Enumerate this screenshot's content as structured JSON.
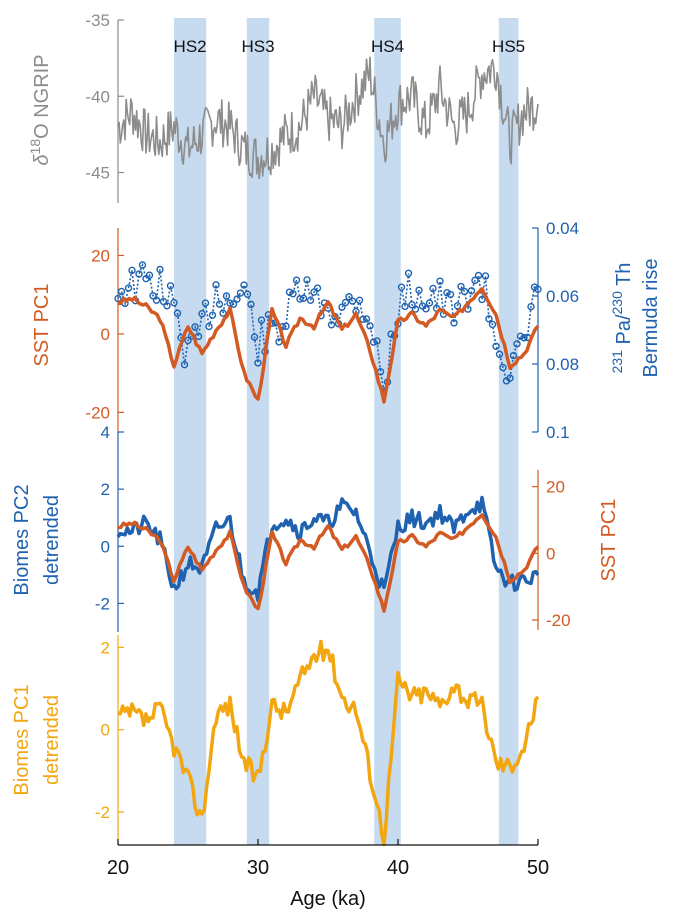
{
  "chart_data": {
    "type": "line",
    "xlabel": "Age (ka)",
    "xlim": [
      20,
      50
    ],
    "xticks": [
      "20",
      "30",
      "40",
      "50"
    ],
    "events": [
      {
        "label": "HS2",
        "start": 24.0,
        "end": 26.3
      },
      {
        "label": "HS3",
        "start": 29.2,
        "end": 30.8
      },
      {
        "label": "HS4",
        "start": 38.3,
        "end": 40.2
      },
      {
        "label": "HS5",
        "start": 47.2,
        "end": 48.6
      }
    ],
    "colors": {
      "ngrip": "#8c8c8c",
      "sst": "#d35a22",
      "pa": "#1f62b0",
      "pc2": "#1f62b0",
      "pc1": "#f2a60f",
      "band": "#c6dbf0"
    },
    "panels": [
      {
        "id": "ngrip",
        "ylabel": "δ18O NGRIP",
        "ylim": [
          -46,
          -35
        ],
        "yticks": [
          "-35",
          "-40",
          "-45"
        ],
        "series": [
          {
            "x": [
              20,
              21,
              22,
              23,
              24,
              25,
              26,
              27,
              28,
              29,
              30,
              31,
              32,
              33,
              34,
              35,
              36,
              37,
              38,
              39,
              40,
              41,
              42,
              43,
              44,
              45,
              46,
              47,
              48,
              49,
              50
            ],
            "y": [
              -42,
              -41,
              -42.5,
              -43,
              -42,
              -43.5,
              -42.5,
              -41.5,
              -42,
              -43.5,
              -44,
              -43.5,
              -42.5,
              -42,
              -40,
              -41.5,
              -42,
              -40,
              -38.5,
              -43,
              -40.5,
              -40,
              -42,
              -39.5,
              -42,
              -41,
              -38.5,
              -38,
              -43,
              -41,
              -40.5
            ]
          }
        ]
      },
      {
        "id": "sst-pa",
        "ylabel": "SST PC1",
        "ylim": [
          -22,
          22
        ],
        "yticks": [
          "20",
          "0",
          "-20"
        ],
        "ylabel_right": "231 Pa/230 Th Bermuda rise",
        "ylim_right": [
          0.04,
          0.1
        ],
        "yticks_right": [
          "0.04",
          "0.06",
          "0.08",
          "0.1"
        ],
        "series": [
          {
            "x": [
              20,
              21,
              22,
              23,
              24,
              25,
              26,
              27,
              28,
              29,
              30,
              31,
              32,
              33,
              34,
              35,
              36,
              37,
              38,
              39,
              40,
              41,
              42,
              43,
              44,
              45,
              46,
              47,
              48,
              49,
              50
            ],
            "y": [
              8,
              9,
              7,
              4,
              -8,
              2,
              -5,
              1,
              6,
              -10,
              -17,
              6,
              -3,
              4,
              2,
              8,
              1,
              5,
              -4,
              -17,
              3,
              5,
              2,
              6,
              4,
              8,
              12,
              5,
              -8,
              -5,
              2
            ]
          },
          {
            "x": [
              20,
              21,
              22,
              23,
              24,
              25,
              26,
              27,
              28,
              29,
              30,
              31,
              32,
              33,
              34,
              35,
              36,
              37,
              38,
              39,
              40,
              41,
              42,
              43,
              44,
              45,
              46,
              47,
              48,
              49,
              50
            ],
            "y": [
              0.058,
              0.057,
              0.056,
              0.057,
              0.064,
              0.078,
              0.07,
              0.058,
              0.062,
              0.058,
              0.074,
              0.07,
              0.067,
              0.058,
              0.062,
              0.063,
              0.065,
              0.06,
              0.066,
              0.088,
              0.063,
              0.058,
              0.06,
              0.061,
              0.066,
              0.058,
              0.056,
              0.072,
              0.082,
              0.076,
              0.058
            ]
          }
        ]
      },
      {
        "id": "pc2-sst",
        "ylabel": "Biomes PC2 detrended",
        "ylim": [
          -3,
          4
        ],
        "yticks": [
          "4",
          "2",
          "0",
          "-2"
        ],
        "ylabel_right": "SST PC1",
        "ylim_right": [
          -22,
          28
        ],
        "yticks_right": [
          "20",
          "0",
          "-20"
        ],
        "series": [
          {
            "x": [
              20,
              21,
              22,
              23,
              24,
              25,
              26,
              27,
              28,
              29,
              30,
              31,
              32,
              33,
              34,
              35,
              36,
              37,
              38,
              39,
              40,
              41,
              42,
              43,
              44,
              45,
              46,
              47,
              48,
              49,
              50
            ],
            "y": [
              0.6,
              0.5,
              0.8,
              0.2,
              -1.5,
              -0.6,
              -0.8,
              0.6,
              0.9,
              -1.2,
              -1.6,
              0.8,
              1.0,
              0.5,
              1.0,
              0.8,
              1.4,
              1.2,
              -0.2,
              -1.6,
              0.7,
              1.0,
              0.8,
              1.2,
              0.6,
              1.3,
              1.5,
              -0.8,
              -1.3,
              -1.2,
              -1.0
            ]
          },
          {
            "x": [
              20,
              21,
              22,
              23,
              24,
              25,
              26,
              27,
              28,
              29,
              30,
              31,
              32,
              33,
              34,
              35,
              36,
              37,
              38,
              39,
              40,
              41,
              42,
              43,
              44,
              45,
              46,
              47,
              48,
              49,
              50
            ],
            "y": [
              8,
              9,
              7,
              4,
              -8,
              2,
              -5,
              1,
              6,
              -10,
              -17,
              6,
              -3,
              4,
              2,
              8,
              1,
              5,
              -4,
              -17,
              3,
              5,
              2,
              6,
              4,
              8,
              12,
              5,
              -8,
              -5,
              2
            ]
          }
        ]
      },
      {
        "id": "pc1",
        "ylabel": "Biomes PC1 detrended",
        "ylim": [
          -2.8,
          2.3
        ],
        "yticks": [
          "2",
          "0",
          "-2"
        ],
        "series": [
          {
            "x": [
              20,
              21,
              22,
              23,
              24,
              25,
              26,
              27,
              28,
              29,
              30,
              31,
              32,
              33,
              34,
              35,
              36,
              37,
              38,
              39,
              40,
              41,
              42,
              43,
              44,
              45,
              46,
              47,
              48,
              49,
              50
            ],
            "y": [
              0.3,
              0.4,
              0.2,
              0.5,
              -0.4,
              -1.2,
              -2.2,
              0.4,
              0.6,
              -0.8,
              -1.2,
              0.6,
              0.4,
              1.2,
              1.8,
              2.0,
              0.8,
              0.5,
              -1.0,
              -2.6,
              1.2,
              0.8,
              0.9,
              0.6,
              1.1,
              0.7,
              0.6,
              -0.8,
              -0.9,
              -0.4,
              0.8
            ]
          }
        ]
      }
    ]
  }
}
